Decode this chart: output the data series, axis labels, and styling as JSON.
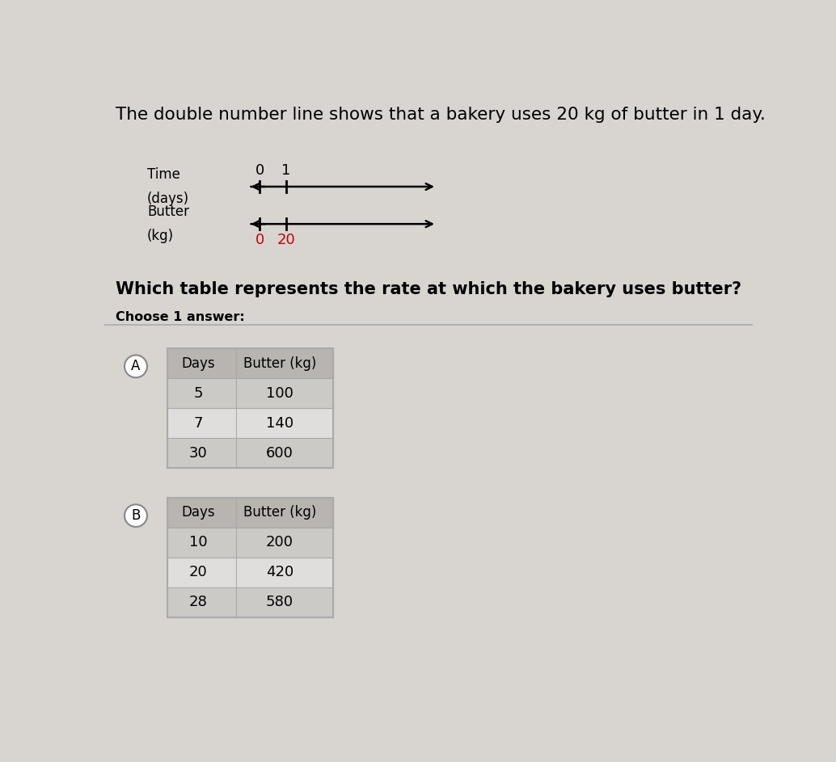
{
  "title": "The double number line shows that a bakery uses 20 kg of butter in 1 day.",
  "title_fontsize": 15.5,
  "bg_color": "#d8d4d0",
  "question": "Which table represents the rate at which the bakery uses butter?",
  "question_fontsize": 15,
  "choose_label": "Choose 1 answer:",
  "choose_fontsize": 11.5,
  "time_label_line1": "Time",
  "time_label_line2": "(days)",
  "butter_label_line1": "Butter",
  "butter_label_line2": "(kg)",
  "tick0_color": "#cc0000",
  "tick1_color": "#cc0000",
  "tick0_time_color": "black",
  "tick1_time_color": "black",
  "time_tick0_label": "0",
  "time_tick1_label": "1",
  "butter_tick0_label": "0",
  "butter_tick1_label": "20",
  "butter_label_color": "#cc0000",
  "table_A_label": "A",
  "table_A_header": [
    "Days",
    "Butter (kg)"
  ],
  "table_A_rows": [
    [
      "5",
      "100"
    ],
    [
      "7",
      "140"
    ],
    [
      "30",
      "600"
    ]
  ],
  "table_B_label": "B",
  "table_B_header": [
    "Days",
    "Butter (kg)"
  ],
  "table_B_rows": [
    [
      "10",
      "200"
    ],
    [
      "20",
      "420"
    ],
    [
      "28",
      "580"
    ]
  ],
  "table_header_bg": "#b8b4b0",
  "table_row_bg_even": "#cccac6",
  "table_row_bg_odd": "#e0dedc",
  "table_border_color": "#aaaaaa",
  "separator_color": "#aaaaaa",
  "circle_border_color": "#888888"
}
